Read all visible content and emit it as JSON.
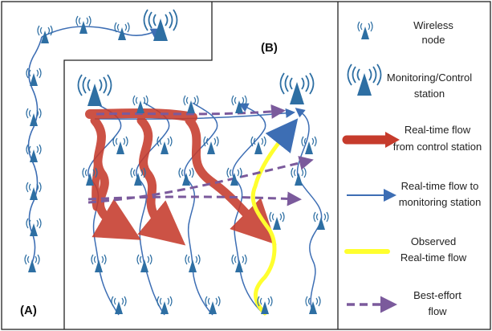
{
  "panels": {
    "a_label": "(A)",
    "b_label": "(B)"
  },
  "legend": {
    "wireless_node": [
      "Wireless",
      "node"
    ],
    "monitoring_station": [
      "Monitoring/Control",
      "station"
    ],
    "control_flow": [
      "Real-time flow",
      "from control station"
    ],
    "monitor_flow": [
      "Real-time flow to",
      "monitoring station"
    ],
    "observed_flow": [
      "Observed",
      "Real-time flow"
    ],
    "best_effort_flow": [
      "Best-effort",
      "flow"
    ]
  },
  "colors": {
    "node": "#2e6fa3",
    "link": "#3d6eb4",
    "control_flow": "#c63b2c",
    "observed_flow": "#ffff2e",
    "best_effort_flow": "#7b5a9c",
    "border": "#222222"
  },
  "icons": {
    "node": "wireless-node-icon",
    "station": "monitoring-station-icon"
  }
}
